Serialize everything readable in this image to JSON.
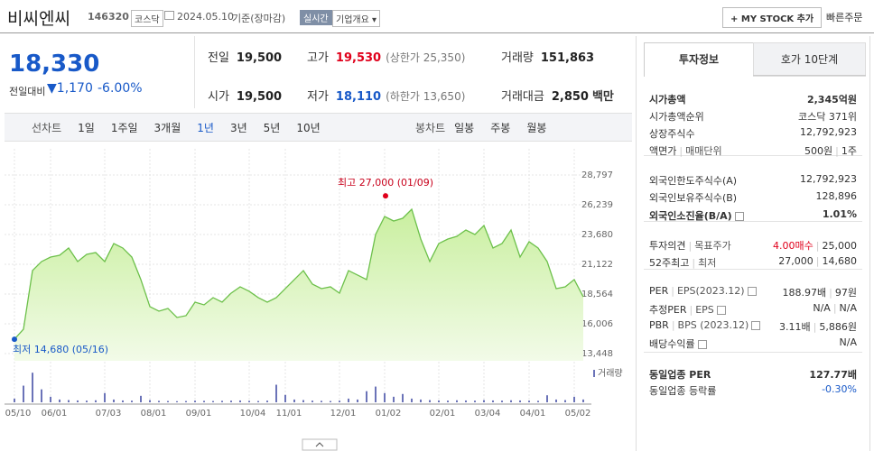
{
  "header": {
    "name": "비씨엔씨",
    "code": "146320",
    "market": "코스닥",
    "date": "2024.05.10",
    "basis": "기준(장마감)",
    "realtime": "실시간",
    "company_info": "기업개요",
    "my_stock": "MY STOCK 추가",
    "quick_order": "빠른주문"
  },
  "price": {
    "current": "18,330",
    "change_label": "전일대비",
    "change": "1,170",
    "rate": "-6.00%"
  },
  "stats": [
    {
      "label": "전일",
      "value": "19,500"
    },
    {
      "label": "고가",
      "value": "19,530",
      "note": "(상한가 25,350)"
    },
    {
      "label": "거래량",
      "value": "151,863"
    },
    {
      "label": "시가",
      "value": "19,500"
    },
    {
      "label": "저가",
      "value": "18,110",
      "note": "(하한가 13,650)"
    },
    {
      "label": "거래대금",
      "value": "2,850",
      "unit": "백만"
    }
  ],
  "periods": {
    "line_label": "선차트",
    "line": [
      "1일",
      "1주일",
      "3개월",
      "1년",
      "3년",
      "5년",
      "10년"
    ],
    "candle_label": "봉차트",
    "candle": [
      "일봉",
      "주봉",
      "월봉"
    ]
  },
  "chart_data": {
    "type": "line",
    "color": "#6cc04a",
    "categories": [
      "05/10",
      null,
      null,
      null,
      "06/01",
      null,
      null,
      null,
      null,
      null,
      "07/03",
      null,
      null,
      null,
      null,
      "08/01",
      null,
      null,
      null,
      null,
      "09/01",
      null,
      null,
      null,
      null,
      null,
      "10/04",
      null,
      null,
      null,
      "11/01",
      null,
      null,
      null,
      null,
      null,
      "12/01",
      null,
      null,
      null,
      null,
      "01/02",
      null,
      null,
      null,
      null,
      null,
      "02/01",
      null,
      null,
      null,
      null,
      "03/04",
      null,
      null,
      null,
      null,
      "04/01",
      null,
      null,
      null,
      null,
      "05/02",
      null
    ],
    "values": [
      14680,
      15544,
      20582,
      21357,
      21744,
      21900,
      22520,
      21357,
      21977,
      22132,
      21357,
      22907,
      22520,
      21744,
      19807,
      17482,
      17094,
      17327,
      16552,
      16707,
      17869,
      17637,
      18257,
      17869,
      18644,
      19187,
      18799,
      18257,
      17869,
      18257,
      19032,
      19807,
      20582,
      19419,
      19032,
      19187,
      18644,
      20582,
      20194,
      19807,
      23682,
      25232,
      24844,
      25077,
      25852,
      23294,
      21357,
      22907,
      23294,
      23527,
      24069,
      23682,
      24457,
      22520,
      22907,
      24069,
      21744,
      23062,
      22520,
      21357,
      19032,
      19187,
      19807,
      18330
    ],
    "ylim": [
      12828,
      31045
    ],
    "yticks": [
      {
        "value": 28797,
        "label": "28,797"
      },
      {
        "value": 26239,
        "label": "26,239"
      },
      {
        "value": 23680,
        "label": "23,680"
      },
      {
        "value": 21122,
        "label": "21,122"
      },
      {
        "value": 18564,
        "label": "18,564"
      },
      {
        "value": 16006,
        "label": "16,006"
      },
      {
        "value": 13448,
        "label": "13,448"
      }
    ],
    "annotations": [
      {
        "text": "최고 27,000 (01/09)",
        "value": 27000
      },
      {
        "text": "최저 14,680 (05/16)",
        "value": 14680
      }
    ],
    "volume": {
      "name": "거래량",
      "color": "#6b73b8",
      "ylim": [
        0,
        2000000
      ],
      "values": [
        200000,
        900000,
        1600000,
        700000,
        300000,
        150000,
        120000,
        100000,
        90000,
        110000,
        500000,
        150000,
        100000,
        90000,
        350000,
        120000,
        80000,
        70000,
        60000,
        70000,
        90000,
        80000,
        70000,
        80000,
        90000,
        100000,
        80000,
        70000,
        90000,
        950000,
        400000,
        150000,
        120000,
        90000,
        80000,
        70000,
        90000,
        200000,
        150000,
        600000,
        850000,
        500000,
        300000,
        450000,
        200000,
        150000,
        120000,
        100000,
        90000,
        110000,
        100000,
        90000,
        120000,
        100000,
        90000,
        110000,
        100000,
        90000,
        80000,
        380000,
        150000,
        120000,
        300000,
        151863
      ]
    }
  },
  "panel": {
    "tabs": [
      "투자정보",
      "호가 10단계"
    ],
    "groups": [
      [
        {
          "label": [
            "시가총액"
          ],
          "value": [
            "2,345억원"
          ]
        },
        {
          "label": [
            "시가총액순위"
          ],
          "value": [
            "코스닥 371위"
          ]
        },
        {
          "label": [
            "상장주식수"
          ],
          "value": [
            "12,792,923"
          ]
        },
        {
          "label": [
            "액면가",
            "매매단위"
          ],
          "value": [
            "500원",
            "1주"
          ]
        }
      ],
      [
        {
          "label": [
            "외국인한도주식수(A)"
          ],
          "value": [
            "12,792,923"
          ]
        },
        {
          "label": [
            "외국인보유주식수(B)"
          ],
          "value": [
            "128,896"
          ]
        },
        {
          "label": [
            "외국인소진율(B/A)"
          ],
          "value": [
            "1.01%"
          ]
        }
      ],
      [
        {
          "label": [
            "투자의견",
            "목표주가"
          ],
          "value": [
            "4.00매수",
            "25,000"
          ]
        },
        {
          "label": [
            "52주최고",
            "최저"
          ],
          "value": [
            "27,000",
            "14,680"
          ]
        }
      ],
      [
        {
          "label": [
            "PER",
            "EPS(2023.12)"
          ],
          "value": [
            "188.97배",
            "97원"
          ]
        },
        {
          "label": [
            "추정PER",
            "EPS"
          ],
          "value": [
            "N/A",
            "N/A"
          ]
        },
        {
          "label": [
            "PBR",
            "BPS (2023.12)"
          ],
          "value": [
            "3.11배",
            "5,886원"
          ]
        },
        {
          "label": [
            "배당수익률"
          ],
          "value": [
            "N/A"
          ]
        }
      ],
      [
        {
          "label": [
            "동일업종 PER"
          ],
          "value": [
            "127.77배"
          ]
        },
        {
          "label": [
            "동일업종 등락률"
          ],
          "value": [
            "-0.30%"
          ]
        }
      ]
    ]
  }
}
